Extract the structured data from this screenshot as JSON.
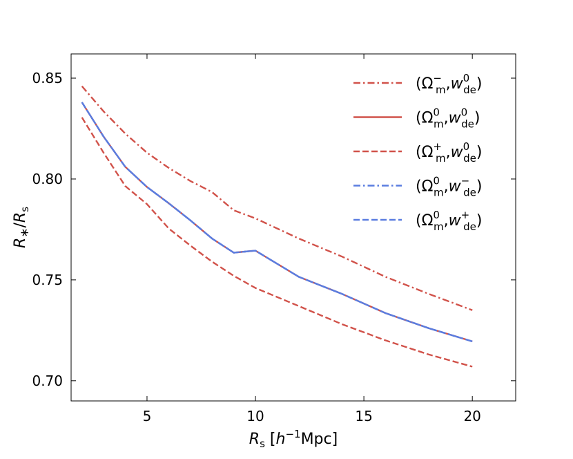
{
  "chart_data": {
    "type": "line",
    "title": "",
    "xlabel": {
      "main": "R",
      "sub": "s",
      "unit_open": " [",
      "unit_h": "h",
      "unit_sup": "−1",
      "unit_rest": "Mpc]"
    },
    "ylabel": {
      "num": "R",
      "num_sub": "∗",
      "slash": "/",
      "den": "R",
      "den_sub": "s"
    },
    "xlim": [
      1.5,
      22
    ],
    "ylim": [
      0.69,
      0.862
    ],
    "xticks": [
      5,
      10,
      15,
      20
    ],
    "xtick_labels": [
      "5",
      "10",
      "15",
      "20"
    ],
    "yticks": [
      0.7,
      0.75,
      0.8,
      0.85
    ],
    "ytick_labels": [
      "0.70",
      "0.75",
      "0.80",
      "0.85"
    ],
    "grid": false,
    "legend_position": "top-right",
    "x": [
      2,
      3,
      4,
      5,
      6,
      7,
      8,
      9,
      10,
      12,
      14,
      16,
      18,
      20
    ],
    "series": [
      {
        "name": {
          "omega_sup": "−",
          "w_sup": "0"
        },
        "color": "#d1524a",
        "dash": "dashdot",
        "values": [
          0.846,
          0.8335,
          0.8225,
          0.813,
          0.8055,
          0.799,
          0.7935,
          0.7845,
          0.7805,
          0.7705,
          0.7615,
          0.7515,
          0.743,
          0.735
        ]
      },
      {
        "name": {
          "omega_sup": "0",
          "w_sup": "0"
        },
        "color": "#d1524a",
        "dash": "solid",
        "values": [
          0.838,
          0.821,
          0.806,
          0.796,
          0.788,
          0.7795,
          0.7705,
          0.7635,
          0.7645,
          0.7515,
          0.743,
          0.7335,
          0.726,
          0.7195
        ]
      },
      {
        "name": {
          "omega_sup": "+",
          "w_sup": "0"
        },
        "color": "#d1524a",
        "dash": "dashed",
        "values": [
          0.8305,
          0.813,
          0.7965,
          0.7875,
          0.7755,
          0.767,
          0.759,
          0.752,
          0.746,
          0.737,
          0.728,
          0.72,
          0.713,
          0.707
        ]
      },
      {
        "name": {
          "omega_sup": "0",
          "w_sup": "−"
        },
        "color": "#5a7de0",
        "dash": "dashdot",
        "values": [
          0.838,
          0.821,
          0.806,
          0.796,
          0.788,
          0.7795,
          0.7705,
          0.7635,
          0.7645,
          0.7515,
          0.743,
          0.7335,
          0.726,
          0.7195
        ]
      },
      {
        "name": {
          "omega_sup": "0",
          "w_sup": "+"
        },
        "color": "#5a7de0",
        "dash": "dashed",
        "values": [
          0.838,
          0.821,
          0.806,
          0.796,
          0.788,
          0.7795,
          0.7705,
          0.7635,
          0.7645,
          0.7515,
          0.743,
          0.7335,
          0.726,
          0.7195
        ]
      }
    ],
    "legend_symbols": {
      "open": "(",
      "omega": "Ω",
      "omega_sub": "m",
      "comma": ",",
      "w": "w",
      "w_sub": "de",
      "close": ")"
    }
  }
}
